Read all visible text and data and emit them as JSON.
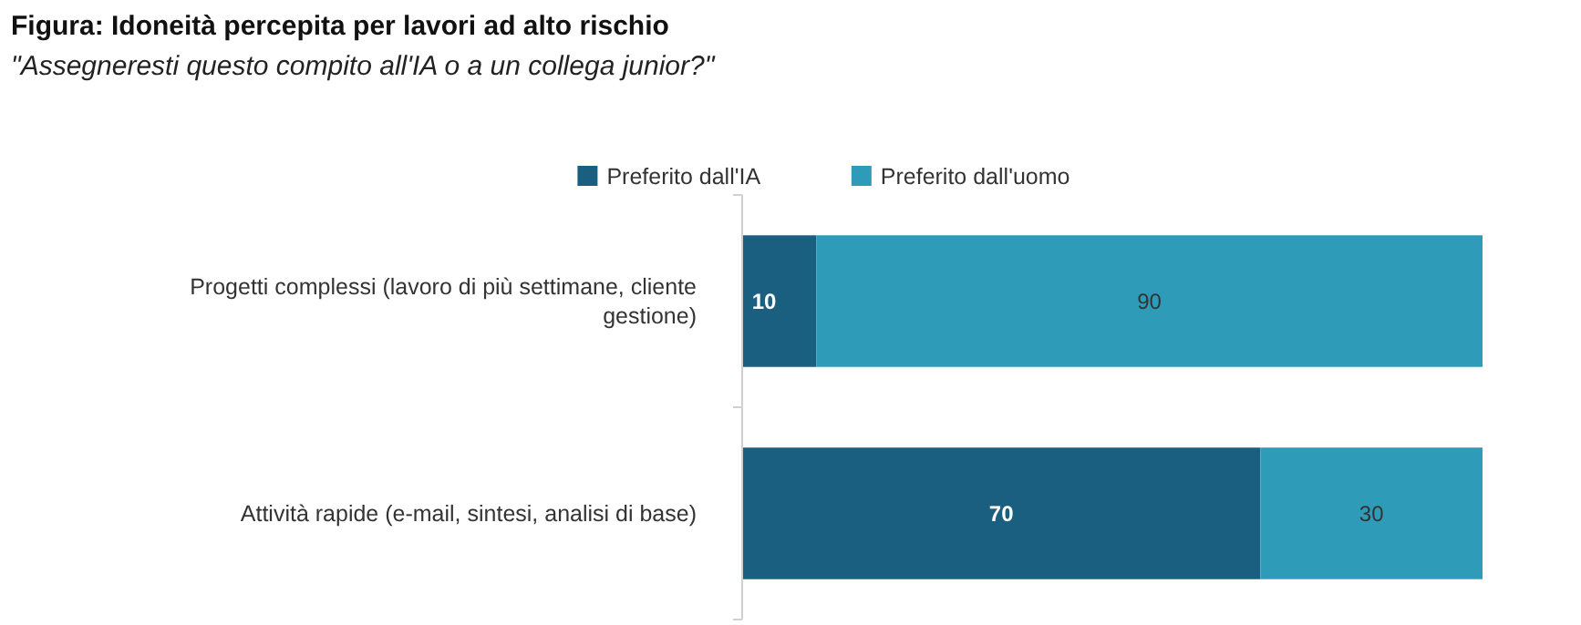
{
  "chart_data": {
    "type": "bar",
    "orientation": "horizontal",
    "stacked": true,
    "title": "Figura: Idoneità percepita per lavori ad alto rischio",
    "subtitle": "\"Assegneresti questo compito all'IA o a un collega junior?\"",
    "categories": [
      "Progetti complessi (lavoro di più settimane, cliente gestione)",
      "Attività rapide (e-mail, sintesi, analisi di base)"
    ],
    "series": [
      {
        "name": "Preferito dall'IA",
        "color": "#1a5f80",
        "values": [
          10,
          70
        ]
      },
      {
        "name": "Preferito dall'uomo",
        "color": "#2e9cb8",
        "values": [
          90,
          30
        ]
      }
    ],
    "data_labels": true,
    "legend": "top",
    "tick_labels": "y"
  }
}
